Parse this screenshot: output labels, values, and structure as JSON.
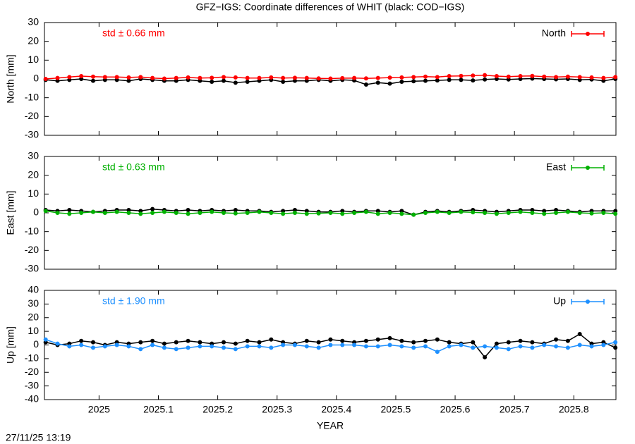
{
  "title": "GFZ−IGS: Coordinate differences of WHIT (black: COD−IGS)",
  "timestamp": "27/11/25 13:19",
  "chart_data": [
    {
      "type": "line",
      "ylabel": "North [mm]",
      "annotation": "std ± 0.66 mm",
      "xlim": [
        2024.908,
        2025.871
      ],
      "xticks": [
        2025,
        2025.1,
        2025.2,
        2025.3,
        2025.4,
        2025.5,
        2025.6,
        2025.7,
        2025.8
      ],
      "ylim": [
        -30,
        30
      ],
      "yticks": [
        -30,
        -20,
        -10,
        0,
        10,
        20,
        30
      ],
      "x": [
        2024.91,
        2024.93,
        2024.95,
        2024.97,
        2024.99,
        2025.01,
        2025.03,
        2025.05,
        2025.07,
        2025.09,
        2025.11,
        2025.13,
        2025.15,
        2025.17,
        2025.19,
        2025.21,
        2025.23,
        2025.25,
        2025.27,
        2025.29,
        2025.31,
        2025.33,
        2025.35,
        2025.37,
        2025.39,
        2025.41,
        2025.43,
        2025.45,
        2025.47,
        2025.49,
        2025.51,
        2025.53,
        2025.55,
        2025.57,
        2025.59,
        2025.61,
        2025.63,
        2025.65,
        2025.67,
        2025.69,
        2025.71,
        2025.73,
        2025.75,
        2025.77,
        2025.79,
        2025.81,
        2025.83,
        2025.85,
        2025.87
      ],
      "series": [
        {
          "color": "#000000",
          "values": [
            -0.5,
            -1,
            -0.5,
            0,
            -1,
            -0.5,
            -0.5,
            -1,
            0,
            -0.5,
            -1,
            -1,
            -0.5,
            -1,
            -1.5,
            -1,
            -2,
            -1.5,
            -1,
            -0.5,
            -1.5,
            -1,
            -1,
            -0.5,
            -1,
            -0.5,
            -0.8,
            -3,
            -2,
            -2.5,
            -1.5,
            -1.2,
            -1,
            -0.8,
            -0.5,
            -0.5,
            -0.8,
            -0.3,
            0,
            -0.3,
            0,
            0.2,
            0,
            -0.2,
            0,
            -0.5,
            -0.3,
            -1,
            0
          ]
        },
        {
          "name": "North",
          "color": "#ff0000",
          "values": [
            0,
            0.5,
            1,
            1.5,
            1.2,
            1,
            1,
            0.8,
            1,
            0.5,
            0.2,
            0.5,
            0.8,
            0.5,
            0.6,
            1,
            0.8,
            0.5,
            0.5,
            0.8,
            0.5,
            0.6,
            0.5,
            0.3,
            0.2,
            0.4,
            0.5,
            0.3,
            0.5,
            0.7,
            0.8,
            1,
            1.2,
            1,
            1.5,
            1.6,
            1.8,
            2,
            1.5,
            1.2,
            1.5,
            1.6,
            1.2,
            1,
            1.2,
            1,
            0.8,
            0.5,
            1
          ]
        }
      ]
    },
    {
      "type": "line",
      "ylabel": "East [mm]",
      "annotation": "std ± 0.63 mm",
      "xlim": [
        2024.908,
        2025.871
      ],
      "xticks": [
        2025,
        2025.1,
        2025.2,
        2025.3,
        2025.4,
        2025.5,
        2025.6,
        2025.7,
        2025.8
      ],
      "ylim": [
        -30,
        30
      ],
      "yticks": [
        -30,
        -20,
        -10,
        0,
        10,
        20,
        30
      ],
      "x": [
        2024.91,
        2024.93,
        2024.95,
        2024.97,
        2024.99,
        2025.01,
        2025.03,
        2025.05,
        2025.07,
        2025.09,
        2025.11,
        2025.13,
        2025.15,
        2025.17,
        2025.19,
        2025.21,
        2025.23,
        2025.25,
        2025.27,
        2025.29,
        2025.31,
        2025.33,
        2025.35,
        2025.37,
        2025.39,
        2025.41,
        2025.43,
        2025.45,
        2025.47,
        2025.49,
        2025.51,
        2025.53,
        2025.55,
        2025.57,
        2025.59,
        2025.61,
        2025.63,
        2025.65,
        2025.67,
        2025.69,
        2025.71,
        2025.73,
        2025.75,
        2025.77,
        2025.79,
        2025.81,
        2025.83,
        2025.85,
        2025.87
      ],
      "series": [
        {
          "color": "#000000",
          "values": [
            1.5,
            1,
            1.5,
            1,
            0.5,
            1,
            1.5,
            1.5,
            1,
            2,
            1.5,
            1,
            1.5,
            1,
            1.5,
            1,
            1.5,
            1,
            1,
            0.5,
            1,
            1.5,
            1,
            0.5,
            0.5,
            1,
            0.5,
            1,
            1,
            0.5,
            1,
            -1,
            0.5,
            1,
            0.5,
            1,
            1.5,
            1,
            0.5,
            1,
            1.5,
            1.5,
            1,
            1.5,
            1,
            0.5,
            1,
            1,
            1
          ]
        },
        {
          "name": "East",
          "color": "#00b000",
          "values": [
            1,
            0,
            -0.5,
            0,
            0.5,
            0,
            0.5,
            0,
            -0.5,
            0,
            0.5,
            0,
            -0.5,
            0,
            0.5,
            0,
            -0.3,
            0,
            0.5,
            0,
            -0.5,
            0,
            -0.5,
            -0.3,
            0,
            -0.5,
            0,
            0.5,
            -0.5,
            0,
            -0.5,
            -1,
            0,
            0.5,
            0,
            0.5,
            0.3,
            0,
            -0.5,
            0,
            0.5,
            0,
            -0.5,
            0,
            0.5,
            0,
            -0.3,
            0,
            -0.5
          ]
        }
      ]
    },
    {
      "type": "line",
      "ylabel": "Up [mm]",
      "xlabel": "YEAR",
      "annotation": "std ± 1.90 mm",
      "xlim": [
        2024.908,
        2025.871
      ],
      "xticks": [
        2025,
        2025.1,
        2025.2,
        2025.3,
        2025.4,
        2025.5,
        2025.6,
        2025.7,
        2025.8
      ],
      "ylim": [
        -40,
        40
      ],
      "yticks": [
        -40,
        -30,
        -20,
        -10,
        0,
        10,
        20,
        30,
        40
      ],
      "x": [
        2024.91,
        2024.93,
        2024.95,
        2024.97,
        2024.99,
        2025.01,
        2025.03,
        2025.05,
        2025.07,
        2025.09,
        2025.11,
        2025.13,
        2025.15,
        2025.17,
        2025.19,
        2025.21,
        2025.23,
        2025.25,
        2025.27,
        2025.29,
        2025.31,
        2025.33,
        2025.35,
        2025.37,
        2025.39,
        2025.41,
        2025.43,
        2025.45,
        2025.47,
        2025.49,
        2025.51,
        2025.53,
        2025.55,
        2025.57,
        2025.59,
        2025.61,
        2025.63,
        2025.65,
        2025.67,
        2025.69,
        2025.71,
        2025.73,
        2025.75,
        2025.77,
        2025.79,
        2025.81,
        2025.83,
        2025.85,
        2025.87
      ],
      "series": [
        {
          "color": "#000000",
          "values": [
            2,
            0,
            1,
            3,
            2,
            0,
            2,
            1,
            2,
            3,
            1,
            2,
            3,
            2,
            1,
            2,
            1,
            3,
            2,
            4,
            2,
            1,
            3,
            2,
            4,
            3,
            2,
            3,
            4,
            5,
            3,
            2,
            3,
            4,
            2,
            1,
            2,
            -9,
            1,
            2,
            3,
            2,
            1,
            4,
            3,
            8,
            1,
            2,
            -2
          ]
        },
        {
          "name": "Up",
          "color": "#1e90ff",
          "values": [
            4,
            1,
            -1,
            0,
            -2,
            -1,
            0,
            -1,
            -3,
            0,
            -2,
            -3,
            -2,
            -1,
            -1,
            -2,
            -3,
            -1,
            -1,
            -2,
            0,
            0,
            -1,
            -2,
            0,
            0,
            0,
            -1,
            -1,
            0,
            -1,
            -2,
            -1,
            -5,
            -1,
            0,
            -2,
            -1,
            -2,
            -3,
            -1,
            -2,
            0,
            -1,
            -2,
            0,
            -1,
            0,
            2
          ]
        }
      ]
    }
  ]
}
